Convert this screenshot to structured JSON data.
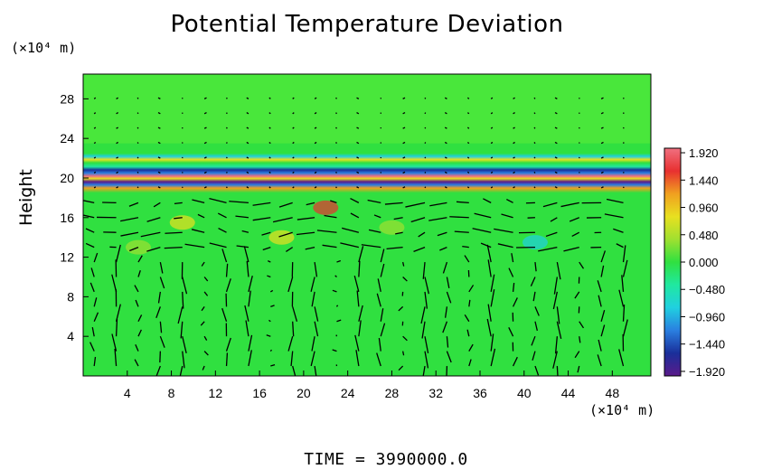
{
  "chart_data": {
    "type": "heatmap",
    "title": "Potential Temperature Deviation",
    "ylabel": "Height",
    "y_unit_label": "(×10⁴ m)",
    "x_unit_label": "(×10⁴ m)",
    "footer": "TIME = 3990000.0",
    "xlim": [
      0,
      51.5
    ],
    "ylim": [
      0,
      30.5
    ],
    "x_ticks": [
      4,
      8,
      12,
      16,
      20,
      24,
      28,
      32,
      36,
      40,
      44,
      48
    ],
    "y_ticks": [
      4,
      8,
      12,
      16,
      20,
      24,
      28
    ],
    "colorbar": {
      "range": [
        -2.0,
        2.0
      ],
      "tick_values": [
        1.92,
        1.44,
        0.96,
        0.48,
        0.0,
        -0.48,
        -0.96,
        -1.44,
        -1.92
      ],
      "tick_labels": [
        "1.920",
        "1.440",
        "0.960",
        "0.480",
        "0.000",
        "−0.480",
        "−0.960",
        "−1.440",
        "−1.920"
      ],
      "colors": [
        "#5a1a8a",
        "#1a2f9a",
        "#2a7fe0",
        "#20d0e0",
        "#20e8a0",
        "#30e040",
        "#a0e030",
        "#e8e020",
        "#f0a020",
        "#e83030",
        "#f07080"
      ]
    },
    "features": {
      "background_value": 0.0,
      "tropopause_band_height": [
        18.5,
        22.5
      ],
      "vectors": "wind field arrows across domain, strongest near height 15 and in low-level columns"
    }
  }
}
